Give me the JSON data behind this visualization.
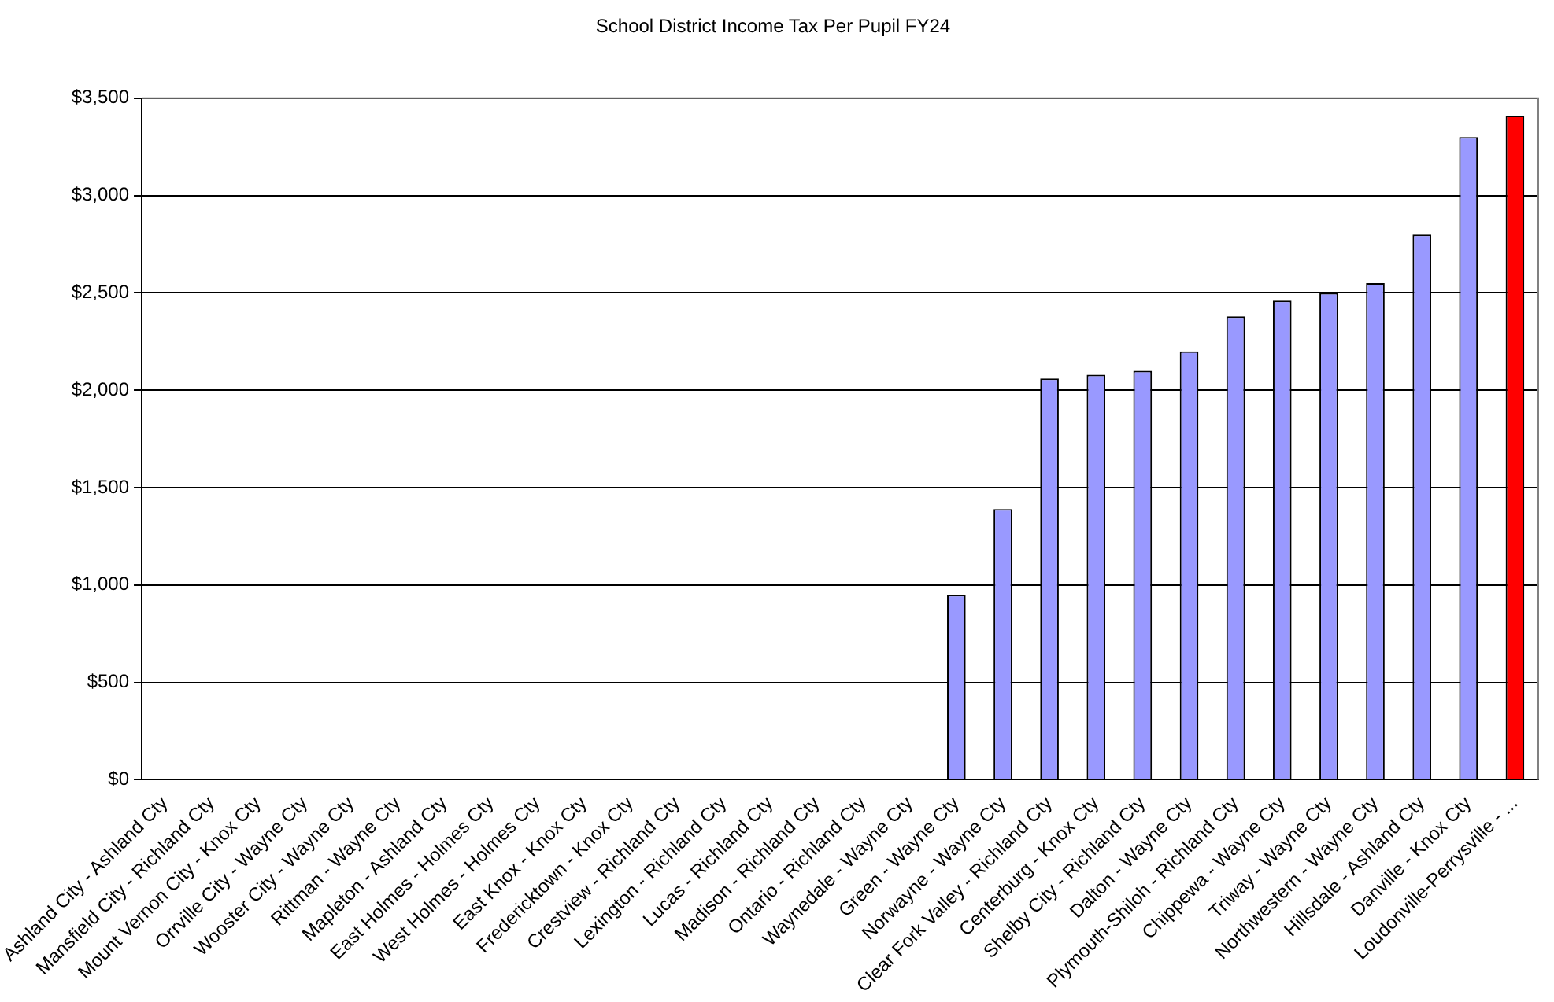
{
  "chart_data": {
    "type": "bar",
    "title": "School District Income Tax Per Pupil FY24",
    "categories": [
      "Ashland City - Ashland Cty",
      "Mansfield City - Richland Cty",
      "Mount Vernon City - Knox Cty",
      "Orrville City - Wayne Cty",
      "Wooster City - Wayne Cty",
      "Rittman - Wayne Cty",
      "Mapleton - Ashland Cty",
      "East Holmes - Holmes Cty",
      "West Holmes - Holmes Cty",
      "East Knox - Knox Cty",
      "Fredericktown - Knox Cty",
      "Crestview - Richland Cty",
      "Lexington - Richland Cty",
      "Lucas - Richland Cty",
      "Madison - Richland Cty",
      "Ontario - Richland Cty",
      "Waynedale - Wayne Cty",
      "Green - Wayne Cty",
      "Norwayne - Wayne Cty",
      "Clear Fork Valley - Richland Cty",
      "Centerburg - Knox Cty",
      "Shelby City - Richland Cty",
      "Dalton - Wayne Cty",
      "Plymouth-Shiloh - Richland Cty",
      "Chippewa - Wayne Cty",
      "Triway - Wayne Cty",
      "Northwestern - Wayne Cty",
      "Hillsdale - Ashland Cty",
      "Danville - Knox Cty",
      "Loudonville-Perrysville - ..."
    ],
    "values": [
      0,
      0,
      0,
      0,
      0,
      0,
      0,
      0,
      0,
      0,
      0,
      0,
      0,
      0,
      0,
      0,
      0,
      950,
      1390,
      2060,
      2080,
      2100,
      2200,
      2380,
      2460,
      2500,
      2550,
      2800,
      3300,
      3410
    ],
    "colors": [
      "#9999ff",
      "#9999ff",
      "#9999ff",
      "#9999ff",
      "#9999ff",
      "#9999ff",
      "#9999ff",
      "#9999ff",
      "#9999ff",
      "#9999ff",
      "#9999ff",
      "#9999ff",
      "#9999ff",
      "#9999ff",
      "#9999ff",
      "#9999ff",
      "#9999ff",
      "#9999ff",
      "#9999ff",
      "#9999ff",
      "#9999ff",
      "#9999ff",
      "#9999ff",
      "#9999ff",
      "#9999ff",
      "#9999ff",
      "#9999ff",
      "#9999ff",
      "#9999ff",
      "#ff0000"
    ],
    "ylim": [
      0,
      3500
    ],
    "yticks": [
      {
        "value": 0,
        "label": "$0"
      },
      {
        "value": 500,
        "label": "$500"
      },
      {
        "value": 1000,
        "label": "$1,000"
      },
      {
        "value": 1500,
        "label": "$1,500"
      },
      {
        "value": 2000,
        "label": "$2,000"
      },
      {
        "value": 2500,
        "label": "$2,500"
      },
      {
        "value": 3000,
        "label": "$3,000"
      },
      {
        "value": 3500,
        "label": "$3,500"
      }
    ],
    "grid": "y",
    "legend": false
  }
}
